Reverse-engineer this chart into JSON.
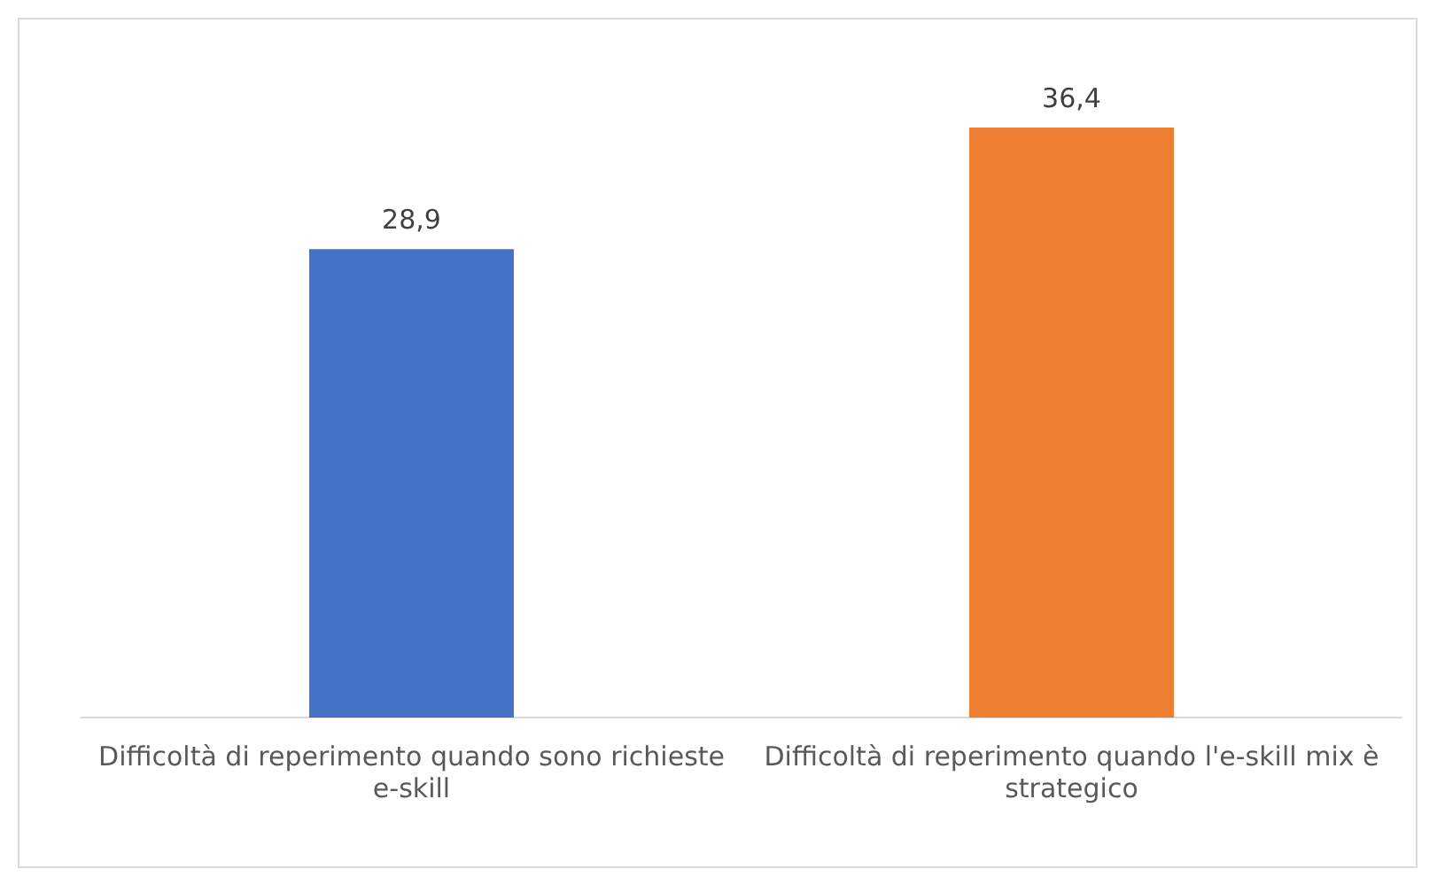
{
  "chart_data": {
    "type": "bar",
    "categories": [
      "Difficoltà di reperimento quando sono richieste e-skill",
      "Difficoltà di reperimento quando l'e-skill mix è strategico"
    ],
    "values": [
      28.9,
      36.4
    ],
    "colors": [
      "#4472c4",
      "#ed7d31"
    ],
    "value_labels": [
      "28,9",
      "36,4"
    ],
    "grid": false,
    "legend": false
  }
}
